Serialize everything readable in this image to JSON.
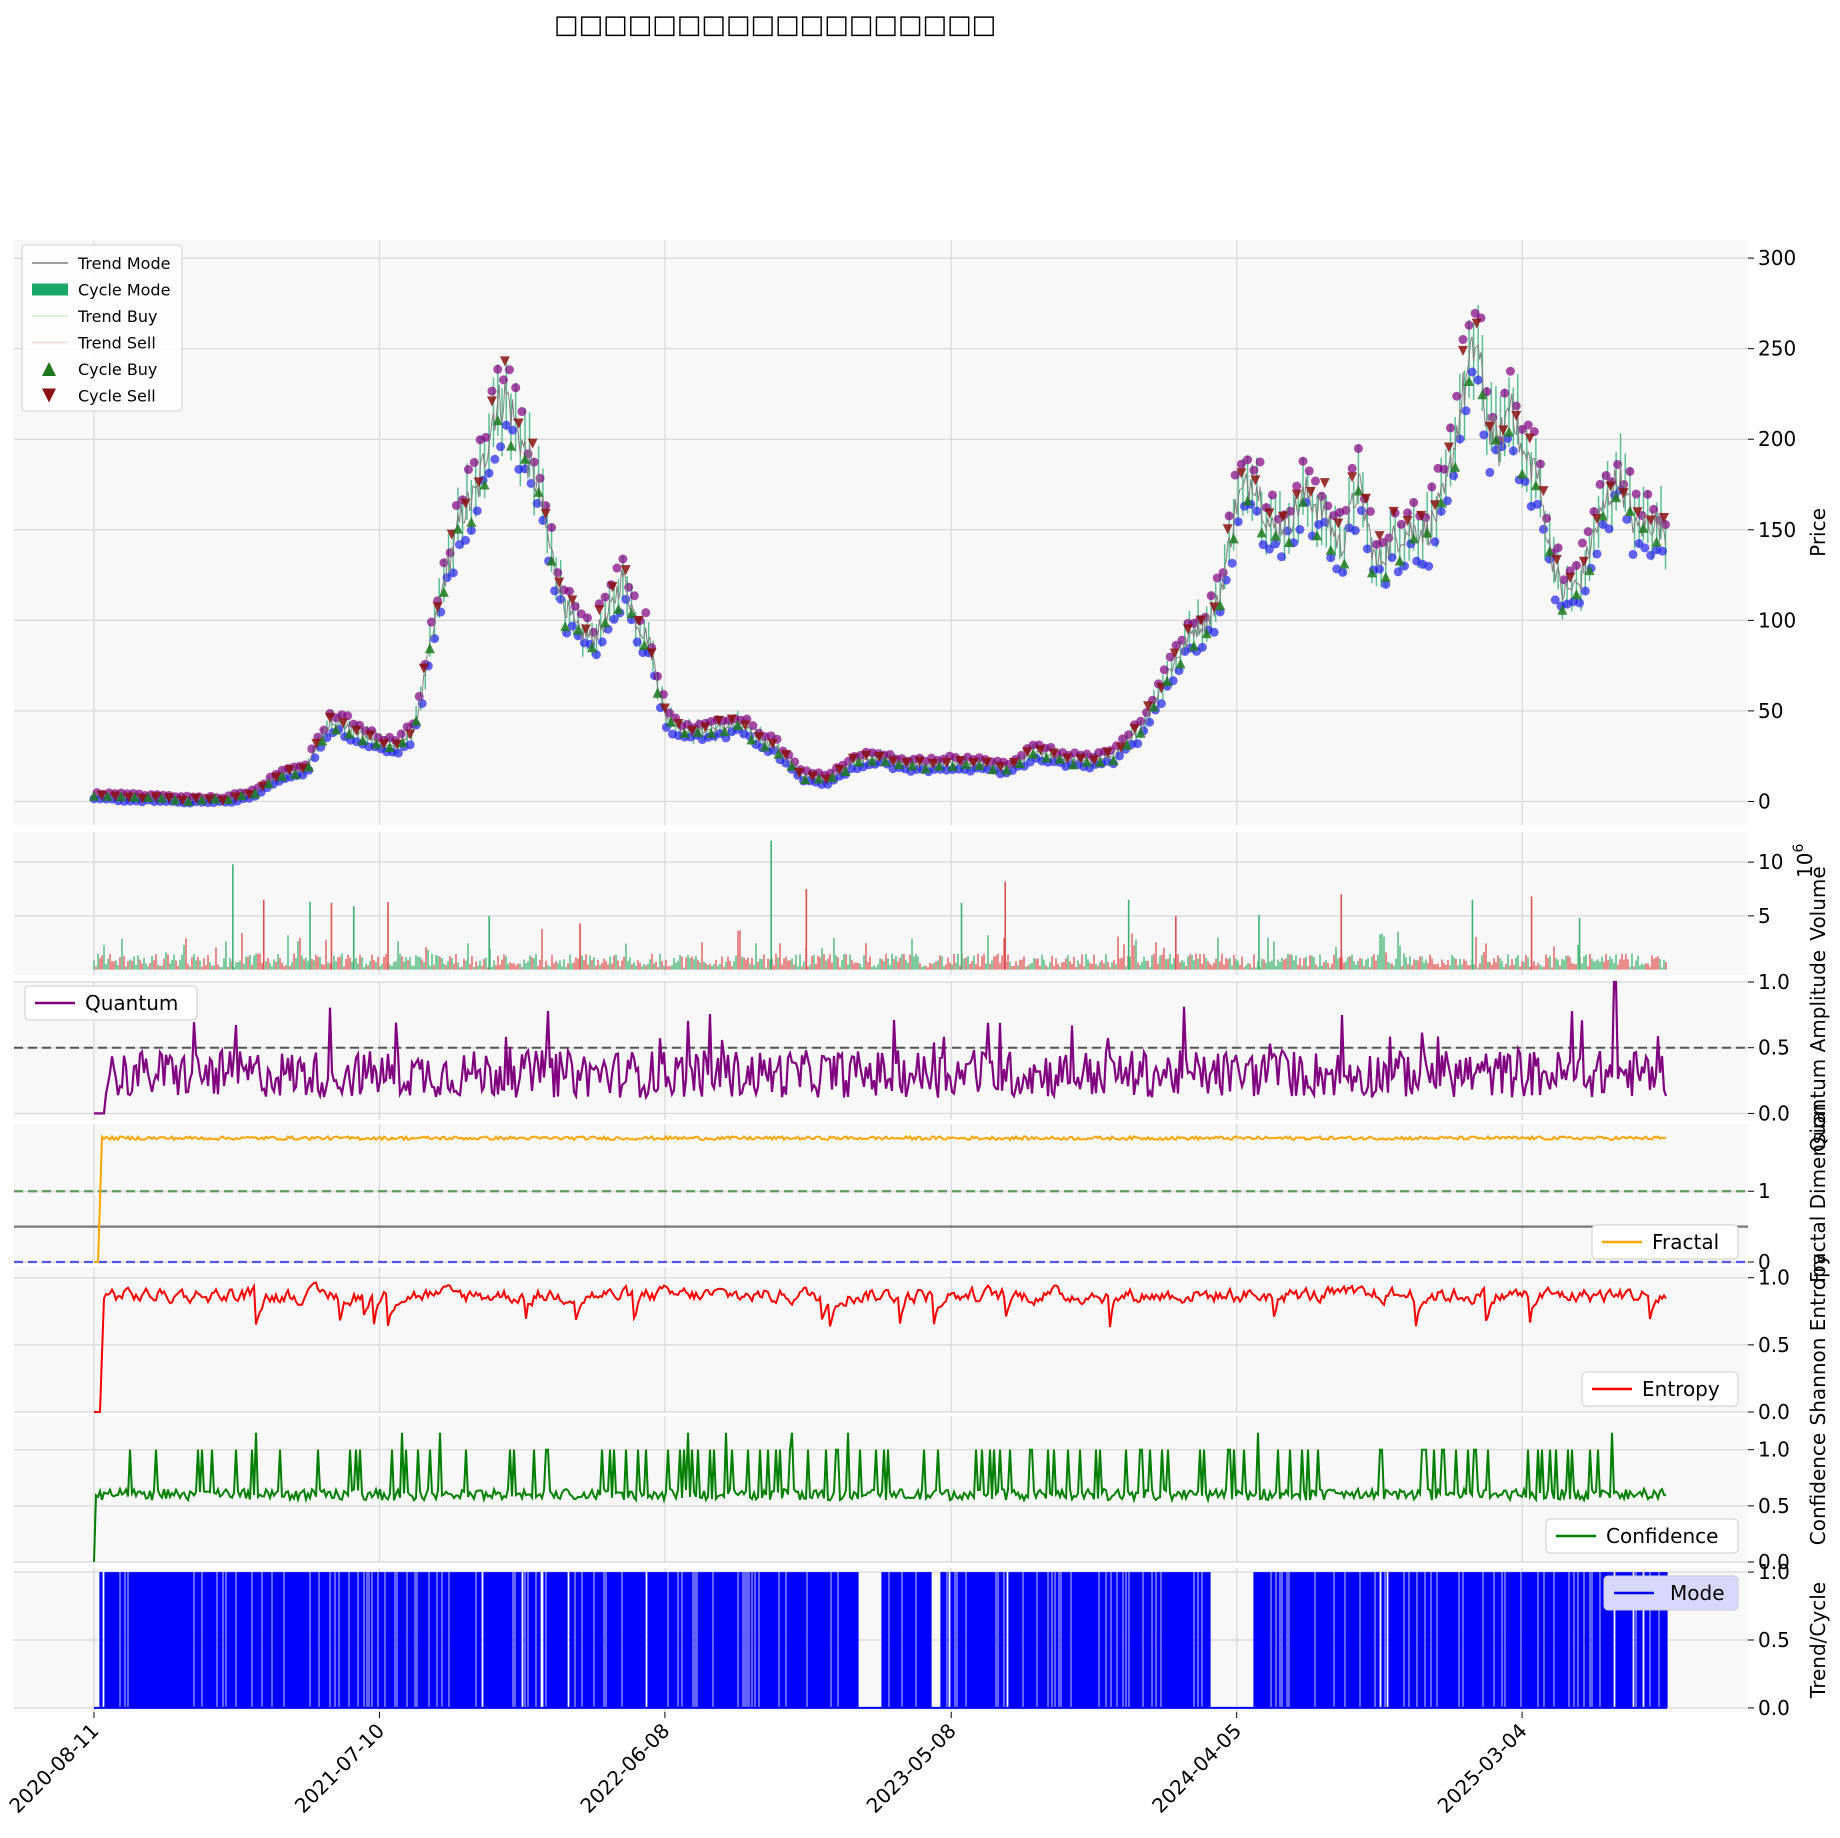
{
  "figure": {
    "title": "□□□□□□□□□□□□□□□□□□"
  },
  "colors": {
    "panel_bg": "#f8f8f8",
    "price_line": "#7f7f7f",
    "cycle_fill": "#1aa86a",
    "cycle_buy": "#1f7a1f",
    "cycle_sell": "#8b1010",
    "trend_low_marker": "#2222ee",
    "trend_high_marker": "#800080",
    "volume_up": "#3cb371",
    "volume_down": "#e05050",
    "quantum": "#800080",
    "fractal": "#ffa500",
    "entropy": "#ff0000",
    "confidence": "#008000",
    "mode": "#0000ff"
  },
  "x_axis": {
    "tick_labels": [
      "2020-08-11",
      "2021-07-10",
      "2022-06-08",
      "2023-05-08",
      "2024-04-05",
      "2025-03-04"
    ],
    "start": "2020-08-11",
    "end": "2025-08-20"
  },
  "chart_data": [
    {
      "panel": "price",
      "type": "line",
      "ylabel": "Price",
      "ylim": [
        -13,
        310
      ],
      "yticks": [
        "0",
        "50",
        "100",
        "150",
        "200",
        "250",
        "300"
      ],
      "ytick_values": [
        0,
        50,
        100,
        150,
        200,
        250,
        300
      ],
      "grid": true,
      "legend_position": "upper-left",
      "legend": [
        "Trend Mode",
        "Cycle Mode",
        "Trend Buy",
        "Trend Sell",
        "Cycle Buy",
        "Cycle Sell"
      ],
      "series": [
        {
          "name": "Trend Mode",
          "x": [
            "2020-08-11",
            "2020-10-01",
            "2020-12-01",
            "2021-01-15",
            "2021-02-15",
            "2021-03-15",
            "2021-04-15",
            "2021-05-15",
            "2021-06-15",
            "2021-07-10",
            "2021-08-01",
            "2021-08-20",
            "2021-09-05",
            "2021-09-25",
            "2021-10-15",
            "2021-11-01",
            "2021-11-20",
            "2021-12-05",
            "2021-12-25",
            "2022-01-10",
            "2022-01-25",
            "2022-02-10",
            "2022-02-25",
            "2022-03-15",
            "2022-04-01",
            "2022-04-20",
            "2022-05-05",
            "2022-05-20",
            "2022-06-08",
            "2022-07-01",
            "2022-08-01",
            "2022-09-01",
            "2022-10-01",
            "2022-10-15",
            "2022-11-15",
            "2022-12-15",
            "2023-01-15",
            "2023-02-15",
            "2023-03-15",
            "2023-04-15",
            "2023-05-08",
            "2023-06-15",
            "2023-07-15",
            "2023-08-15",
            "2023-09-15",
            "2023-10-15",
            "2023-11-15",
            "2023-12-15",
            "2024-01-15",
            "2024-02-15",
            "2024-03-01",
            "2024-03-15",
            "2024-04-05",
            "2024-04-25",
            "2024-05-15",
            "2024-06-05",
            "2024-06-25",
            "2024-07-15",
            "2024-08-05",
            "2024-08-25",
            "2024-09-15",
            "2024-10-05",
            "2024-10-25",
            "2024-11-15",
            "2024-12-05",
            "2024-12-25",
            "2025-01-10",
            "2025-01-20",
            "2025-02-05",
            "2025-02-20",
            "2025-03-04",
            "2025-03-20",
            "2025-04-05",
            "2025-04-20",
            "2025-05-10",
            "2025-05-25",
            "2025-06-10",
            "2025-06-25",
            "2025-07-15",
            "2025-08-01",
            "2025-08-20"
          ],
          "values": [
            3,
            2,
            1,
            1,
            5,
            14,
            18,
            45,
            38,
            32,
            30,
            40,
            80,
            125,
            160,
            170,
            215,
            225,
            195,
            175,
            140,
            110,
            95,
            90,
            100,
            125,
            100,
            90,
            48,
            38,
            40,
            42,
            34,
            30,
            14,
            12,
            22,
            24,
            20,
            20,
            21,
            20,
            18,
            28,
            23,
            22,
            25,
            40,
            70,
            95,
            100,
            110,
            165,
            180,
            150,
            155,
            170,
            160,
            140,
            175,
            130,
            145,
            150,
            150,
            170,
            225,
            255,
            215,
            195,
            225,
            190,
            185,
            140,
            115,
            120,
            145,
            165,
            180,
            150,
            155,
            150
          ]
        }
      ]
    },
    {
      "panel": "volume",
      "type": "bar",
      "ylabel": "Volume",
      "y_multiplier": "10^6",
      "ylim": [
        -0.5,
        12.8
      ],
      "yticks": [
        "5",
        "10"
      ],
      "ytick_values": [
        5,
        10
      ],
      "spikes": [
        {
          "x": "2021-01-20",
          "value": 9.8
        },
        {
          "x": "2021-02-25",
          "value": 6.5
        },
        {
          "x": "2021-04-20",
          "value": 6.3
        },
        {
          "x": "2021-05-15",
          "value": 6.2
        },
        {
          "x": "2021-06-10",
          "value": 5.9
        },
        {
          "x": "2021-07-20",
          "value": 6.3
        },
        {
          "x": "2021-11-15",
          "value": 5.0
        },
        {
          "x": "2022-03-01",
          "value": 4.3
        },
        {
          "x": "2022-10-10",
          "value": 12.0
        },
        {
          "x": "2022-11-20",
          "value": 7.5
        },
        {
          "x": "2023-05-20",
          "value": 6.2
        },
        {
          "x": "2023-07-10",
          "value": 8.2
        },
        {
          "x": "2023-12-01",
          "value": 6.5
        },
        {
          "x": "2024-01-25",
          "value": 5.0
        },
        {
          "x": "2024-05-01",
          "value": 5.1
        },
        {
          "x": "2024-08-05",
          "value": 7.0
        },
        {
          "x": "2025-01-05",
          "value": 6.5
        },
        {
          "x": "2025-03-15",
          "value": 6.8
        },
        {
          "x": "2025-05-10",
          "value": 4.8
        }
      ]
    },
    {
      "panel": "quantum",
      "type": "line",
      "ylabel": "Quantum Amplitude",
      "ylim": [
        -0.05,
        1.0
      ],
      "yticks": [
        "0.0",
        "0.5",
        "1.0"
      ],
      "ytick_values": [
        0,
        0.5,
        1.0
      ],
      "reference_line": 0.5,
      "legend": [
        "Quantum"
      ],
      "legend_position": "upper-left",
      "series": [
        {
          "name": "Quantum",
          "mean": 0.3,
          "spread": 0.18,
          "peak": 1.0,
          "peak_x": "2025-06-20"
        }
      ]
    },
    {
      "panel": "fractal",
      "type": "line",
      "ylabel": "Fractal Dimension",
      "ylim": [
        0,
        1.95
      ],
      "yticks": [
        "0",
        "1"
      ],
      "ytick_values": [
        0,
        1
      ],
      "reference_lines": [
        {
          "value": 1.0,
          "style": "dashed",
          "color": "green"
        },
        {
          "value": 0.5,
          "style": "solid",
          "color": "gray"
        },
        {
          "value": 0,
          "style": "dashed",
          "color": "blue"
        }
      ],
      "legend": [
        "Fractal"
      ],
      "legend_position": "lower-right",
      "series": [
        {
          "name": "Fractal",
          "level": 1.75
        }
      ]
    },
    {
      "panel": "entropy",
      "type": "line",
      "ylabel": "Shannon Entropy",
      "ylim": [
        0,
        1.08
      ],
      "yticks": [
        "0.0",
        "0.5",
        "1.0"
      ],
      "ytick_values": [
        0,
        0.5,
        1.0
      ],
      "legend": [
        "Entropy"
      ],
      "legend_position": "lower-right",
      "series": [
        {
          "name": "Entropy",
          "mean": 0.87,
          "min": 0.63,
          "max": 1.0
        }
      ]
    },
    {
      "panel": "confidence",
      "type": "line",
      "ylabel": "Confidence",
      "ylim": [
        0,
        1.3
      ],
      "yticks": [
        "0.0",
        "0.5",
        "1.0"
      ],
      "ytick_values": [
        0,
        0.5,
        1.0
      ],
      "legend": [
        "Confidence"
      ],
      "legend_position": "lower-right",
      "series": [
        {
          "name": "Confidence",
          "base": 0.55,
          "spike_level": 1.0,
          "max": 1.15
        }
      ]
    },
    {
      "panel": "mode",
      "type": "area",
      "ylabel": "Trend/Cycle",
      "ylim": [
        -0.03,
        1.03
      ],
      "yticks": [
        "0.0",
        "0.5",
        "1.0"
      ],
      "ytick_values": [
        0,
        0.5,
        1.0
      ],
      "legend": [
        "Mode"
      ],
      "legend_position": "upper-right",
      "series": [
        {
          "name": "Mode",
          "values": [
            0,
            1
          ],
          "gaps": [
            [
              "2023-01-20",
              "2023-02-15"
            ],
            [
              "2023-04-15",
              "2023-04-25"
            ],
            [
              "2024-03-05",
              "2024-04-25"
            ]
          ]
        }
      ]
    }
  ]
}
